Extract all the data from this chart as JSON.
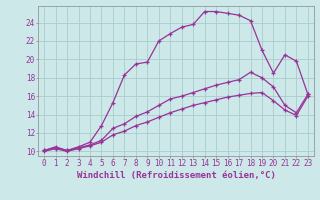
{
  "xlabel": "Windchill (Refroidissement éolien,°C)",
  "bg_color": "#cce8e8",
  "grid_color": "#aacccc",
  "line_color": "#993399",
  "xlim": [
    -0.5,
    23.5
  ],
  "ylim": [
    9.5,
    25.8
  ],
  "xticks": [
    0,
    1,
    2,
    3,
    4,
    5,
    6,
    7,
    8,
    9,
    10,
    11,
    12,
    13,
    14,
    15,
    16,
    17,
    18,
    19,
    20,
    21,
    22,
    23
  ],
  "yticks": [
    10,
    12,
    14,
    16,
    18,
    20,
    22,
    24
  ],
  "lines": [
    {
      "x": [
        0,
        1,
        2,
        3,
        4,
        5,
        6,
        7,
        8,
        9,
        10,
        11,
        12,
        13,
        14,
        15,
        16,
        17,
        18,
        19,
        20,
        21,
        22,
        23
      ],
      "y": [
        10.1,
        10.5,
        10.1,
        10.5,
        11.0,
        12.8,
        15.3,
        18.3,
        19.5,
        19.7,
        22.0,
        22.8,
        23.5,
        23.8,
        25.2,
        25.2,
        25.0,
        24.8,
        24.2,
        21.0,
        18.5,
        20.5,
        19.8,
        16.2
      ]
    },
    {
      "x": [
        0,
        1,
        2,
        3,
        4,
        5,
        6,
        7,
        8,
        9,
        10,
        11,
        12,
        13,
        14,
        15,
        16,
        17,
        18,
        19,
        20,
        21,
        22,
        23
      ],
      "y": [
        10.1,
        10.4,
        10.1,
        10.4,
        10.7,
        11.2,
        12.5,
        13.0,
        13.8,
        14.3,
        15.0,
        15.7,
        16.0,
        16.4,
        16.8,
        17.2,
        17.5,
        17.8,
        18.6,
        18.0,
        17.0,
        15.0,
        14.2,
        16.2
      ]
    },
    {
      "x": [
        0,
        1,
        2,
        3,
        4,
        5,
        6,
        7,
        8,
        9,
        10,
        11,
        12,
        13,
        14,
        15,
        16,
        17,
        18,
        19,
        20,
        21,
        22,
        23
      ],
      "y": [
        10.0,
        10.3,
        10.0,
        10.3,
        10.6,
        11.0,
        11.8,
        12.2,
        12.8,
        13.2,
        13.7,
        14.2,
        14.6,
        15.0,
        15.3,
        15.6,
        15.9,
        16.1,
        16.3,
        16.4,
        15.5,
        14.5,
        13.9,
        16.0
      ]
    }
  ],
  "tick_fontsize": 5.5,
  "xlabel_fontsize": 6.5
}
